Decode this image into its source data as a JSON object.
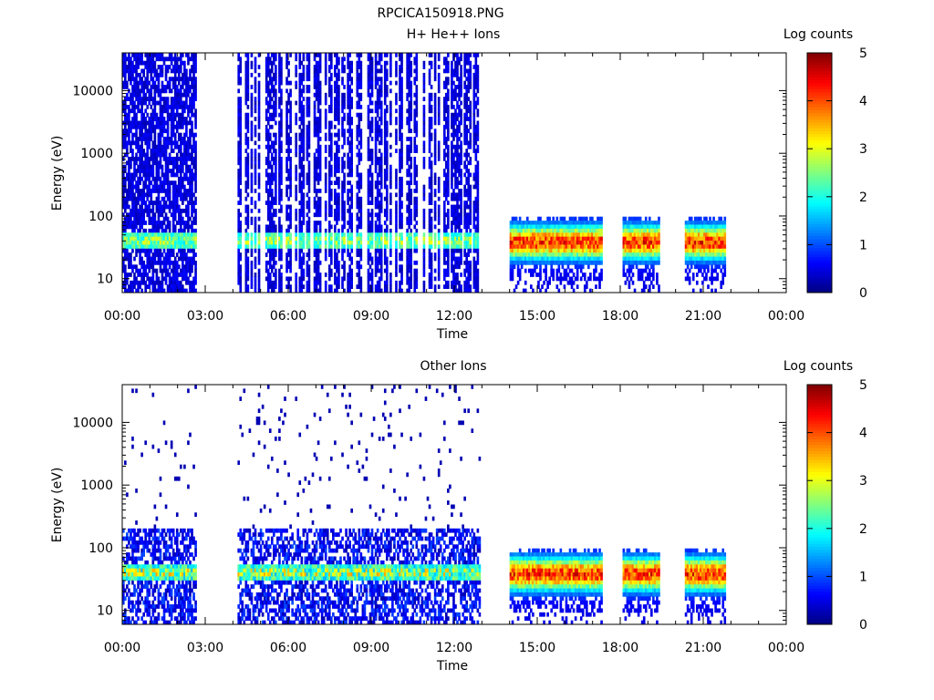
{
  "figure_title": "RPCICA150918.PNG",
  "chart_data": [
    {
      "type": "heatmap",
      "title": "H+ He++ Ions",
      "xlabel": "Time",
      "ylabel": "Energy (eV)",
      "xlim": [
        "00:00",
        "24:00"
      ],
      "ylim": [
        6,
        40000
      ],
      "yscale": "log",
      "x_ticks": [
        "00:00",
        "03:00",
        "06:00",
        "09:00",
        "12:00",
        "15:00",
        "18:00",
        "21:00",
        "00:00"
      ],
      "y_ticks": [
        "10",
        "100",
        "1000",
        "10000"
      ],
      "colorbar": {
        "label": "Log counts",
        "min": 0,
        "max": 5,
        "ticks": [
          "0",
          "1",
          "2",
          "3",
          "4",
          "5"
        ]
      },
      "grid": false,
      "data_intervals": [
        {
          "start": "00:00",
          "end": "02:40",
          "emin": 6,
          "emax": 40000,
          "character": "scattered high-energy counts with band near 40 eV"
        },
        {
          "start": "04:10",
          "end": "12:55",
          "emin": 6,
          "emax": 40000,
          "character": "striped high-energy counts with band near 40 eV"
        },
        {
          "start": "14:00",
          "end": "17:20",
          "emin": 6,
          "emax": 100,
          "character": "intense low-energy ions, peak ~40 eV"
        },
        {
          "start": "18:05",
          "end": "19:25",
          "emin": 6,
          "emax": 100,
          "character": "intense low-energy ions"
        },
        {
          "start": "20:20",
          "end": "21:45",
          "emin": 6,
          "emax": 100,
          "character": "intense low-energy ions"
        }
      ]
    },
    {
      "type": "heatmap",
      "title": "Other Ions",
      "xlabel": "Time",
      "ylabel": "Energy (eV)",
      "xlim": [
        "00:00",
        "24:00"
      ],
      "ylim": [
        6,
        40000
      ],
      "yscale": "log",
      "x_ticks": [
        "00:00",
        "03:00",
        "06:00",
        "09:00",
        "12:00",
        "15:00",
        "18:00",
        "21:00",
        "00:00"
      ],
      "y_ticks": [
        "10",
        "100",
        "1000",
        "10000"
      ],
      "colorbar": {
        "label": "Log counts",
        "min": 0,
        "max": 5,
        "ticks": [
          "0",
          "1",
          "2",
          "3",
          "4",
          "5"
        ]
      },
      "grid": false,
      "data_intervals": [
        {
          "start": "00:00",
          "end": "02:40",
          "emin": 6,
          "emax": 40000,
          "character": "sparse counts, band near 40 eV"
        },
        {
          "start": "04:10",
          "end": "12:55",
          "emin": 6,
          "emax": 40000,
          "character": "sparse counts, band near 40 eV"
        },
        {
          "start": "14:00",
          "end": "17:20",
          "emin": 6,
          "emax": 100,
          "character": "intense low-energy ions, peak ~40 eV"
        },
        {
          "start": "18:05",
          "end": "19:25",
          "emin": 6,
          "emax": 100,
          "character": "intense low-energy ions"
        },
        {
          "start": "20:20",
          "end": "21:45",
          "emin": 6,
          "emax": 100,
          "character": "intense low-energy ions"
        }
      ]
    }
  ]
}
